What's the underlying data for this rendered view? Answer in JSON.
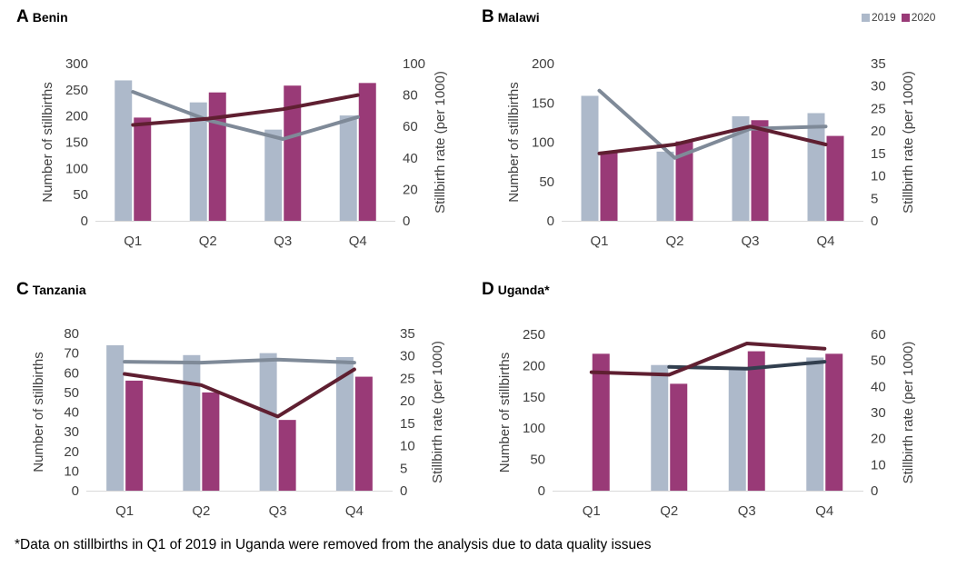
{
  "legend": [
    {
      "label": "2019",
      "color": "#adb9ca"
    },
    {
      "label": "2020",
      "color": "#993a77"
    }
  ],
  "colors": {
    "bar_2019": "#adb9ca",
    "bar_2020": "#993a77",
    "line_2019": "#7f8a98",
    "line_2020": "#5f1f31",
    "line_2019_uganda": "#323f4f",
    "axis": "#d9d9d9",
    "text": "#404040"
  },
  "chart_data": [
    {
      "type": "bar",
      "letter": "A",
      "country": "Benin",
      "categories": [
        "Q1",
        "Q2",
        "Q3",
        "Q4"
      ],
      "ylabel": "Number of stillbirths",
      "y2label": "Stillbirth rate (per 1000)",
      "ylim": [
        0,
        300
      ],
      "yticks": [
        0,
        50,
        100,
        150,
        200,
        250,
        300
      ],
      "y2lim": [
        0,
        100
      ],
      "y2ticks": [
        0,
        20,
        40,
        60,
        80,
        100
      ],
      "series": [
        {
          "name": "2019",
          "kind": "bar",
          "values": [
            268,
            226,
            174,
            201
          ]
        },
        {
          "name": "2020",
          "kind": "bar",
          "values": [
            197,
            245,
            258,
            263
          ]
        },
        {
          "name": "2019",
          "kind": "line",
          "axis": "right",
          "values": [
            82,
            64,
            52,
            66
          ]
        },
        {
          "name": "2020",
          "kind": "line",
          "axis": "right",
          "values": [
            61,
            65,
            71,
            80
          ]
        }
      ]
    },
    {
      "type": "bar",
      "letter": "B",
      "country": "Malawi",
      "categories": [
        "Q1",
        "Q2",
        "Q3",
        "Q4"
      ],
      "ylabel": "Number of stillbirths",
      "y2label": "Stillbirth rate (per 1000)",
      "ylim": [
        0,
        200
      ],
      "yticks": [
        0,
        50,
        100,
        150,
        200
      ],
      "y2lim": [
        0,
        35
      ],
      "y2ticks": [
        0,
        5,
        10,
        15,
        20,
        25,
        30,
        35
      ],
      "series": [
        {
          "name": "2019",
          "kind": "bar",
          "values": [
            159,
            88,
            133,
            137
          ]
        },
        {
          "name": "2020",
          "kind": "bar",
          "values": [
            88,
            101,
            128,
            108
          ]
        },
        {
          "name": "2019",
          "kind": "line",
          "axis": "right",
          "values": [
            29,
            14,
            20.5,
            21
          ]
        },
        {
          "name": "2020",
          "kind": "line",
          "axis": "right",
          "values": [
            15,
            17,
            21,
            17
          ]
        }
      ]
    },
    {
      "type": "bar",
      "letter": "C",
      "country": "Tanzania",
      "categories": [
        "Q1",
        "Q2",
        "Q3",
        "Q4"
      ],
      "ylabel": "Number of stillbirths",
      "y2label": "Stillbirth rate (per 1000)",
      "ylim": [
        0,
        80
      ],
      "yticks": [
        0,
        10,
        20,
        30,
        40,
        50,
        60,
        70,
        80
      ],
      "y2lim": [
        0,
        35
      ],
      "y2ticks": [
        0,
        5,
        10,
        15,
        20,
        25,
        30,
        35
      ],
      "series": [
        {
          "name": "2019",
          "kind": "bar",
          "values": [
            74,
            69,
            70,
            68
          ]
        },
        {
          "name": "2020",
          "kind": "bar",
          "values": [
            56,
            50,
            36,
            58
          ]
        },
        {
          "name": "2019",
          "kind": "line",
          "axis": "right",
          "values": [
            28.7,
            28.5,
            29.2,
            28.5
          ]
        },
        {
          "name": "2020",
          "kind": "line",
          "axis": "right",
          "values": [
            26,
            23.5,
            16.5,
            27
          ]
        }
      ]
    },
    {
      "type": "bar",
      "letter": "D",
      "country": "Uganda*",
      "categories": [
        "Q1",
        "Q2",
        "Q3",
        "Q4"
      ],
      "ylabel": "Number of stillbirths",
      "y2label": "Stillbirth rate (per 1000)",
      "ylim": [
        0,
        250
      ],
      "yticks": [
        0,
        50,
        100,
        150,
        200,
        250
      ],
      "y2lim": [
        0,
        60
      ],
      "y2ticks": [
        0,
        10,
        20,
        30,
        40,
        50,
        60
      ],
      "series": [
        {
          "name": "2019",
          "kind": "bar",
          "values": [
            null,
            201,
            195,
            213
          ]
        },
        {
          "name": "2020",
          "kind": "bar",
          "values": [
            219,
            171,
            223,
            219
          ]
        },
        {
          "name": "2019",
          "kind": "line",
          "axis": "right",
          "values": [
            null,
            47.5,
            46.8,
            49.5
          ]
        },
        {
          "name": "2020",
          "kind": "line",
          "axis": "right",
          "values": [
            45.5,
            44.5,
            56.5,
            54.5
          ]
        }
      ]
    }
  ],
  "footnote": "*Data on stillbirths in Q1 of 2019 in Uganda were removed from the analysis due to data quality issues"
}
